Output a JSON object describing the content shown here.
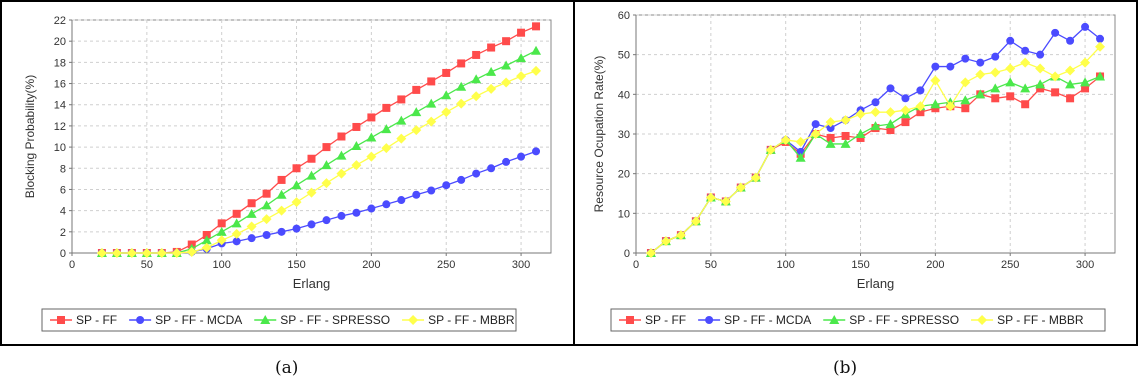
{
  "captions": [
    "(a)",
    "(b)"
  ],
  "chart_data": [
    {
      "type": "line",
      "xlabel": "Erlang",
      "ylabel": "Blocking Probability(%)",
      "xlim": [
        0,
        320
      ],
      "ylim": [
        0,
        22
      ],
      "xticks": [
        0,
        50,
        100,
        150,
        200,
        250,
        300
      ],
      "yticks": [
        0,
        2,
        4,
        6,
        8,
        10,
        12,
        14,
        16,
        18,
        20,
        22
      ],
      "grid": true,
      "legend_position": "bottom",
      "x": [
        20,
        30,
        40,
        50,
        60,
        70,
        80,
        90,
        100,
        110,
        120,
        130,
        140,
        150,
        160,
        170,
        180,
        190,
        200,
        210,
        220,
        230,
        240,
        250,
        260,
        270,
        280,
        290,
        300,
        310
      ],
      "series": [
        {
          "name": "SP - FF",
          "color": "#ff4b4b",
          "marker": "square",
          "values": [
            0,
            0,
            0,
            0,
            0,
            0.1,
            0.8,
            1.7,
            2.8,
            3.7,
            4.7,
            5.6,
            6.9,
            8.0,
            8.9,
            10.0,
            11.0,
            11.9,
            12.8,
            13.7,
            14.5,
            15.4,
            16.2,
            17.0,
            17.9,
            18.7,
            19.4,
            20.0,
            20.8,
            21.4
          ]
        },
        {
          "name": "SP - FF - MCDA",
          "color": "#4b4bff",
          "marker": "circle",
          "values": [
            0,
            0,
            0,
            0,
            0,
            0,
            0.1,
            0.4,
            0.9,
            1.1,
            1.4,
            1.7,
            2.0,
            2.3,
            2.7,
            3.1,
            3.5,
            3.8,
            4.2,
            4.6,
            5.0,
            5.5,
            5.9,
            6.4,
            6.9,
            7.5,
            8.0,
            8.6,
            9.1,
            9.6
          ]
        },
        {
          "name": "SP - FF - SPRESSO",
          "color": "#4be84b",
          "marker": "triangle",
          "values": [
            0,
            0,
            0,
            0,
            0,
            0,
            0.4,
            1.2,
            2.0,
            2.8,
            3.7,
            4.5,
            5.5,
            6.4,
            7.3,
            8.3,
            9.2,
            10.1,
            10.9,
            11.7,
            12.5,
            13.3,
            14.1,
            14.9,
            15.7,
            16.4,
            17.1,
            17.7,
            18.4,
            19.1
          ]
        },
        {
          "name": "SP - FF - MBBR",
          "color": "#ffff4b",
          "marker": "diamond",
          "values": [
            0,
            0,
            0,
            0,
            0,
            0,
            0.1,
            0.5,
            1.2,
            1.8,
            2.5,
            3.2,
            4.0,
            4.8,
            5.7,
            6.6,
            7.5,
            8.3,
            9.1,
            9.9,
            10.8,
            11.6,
            12.4,
            13.3,
            14.1,
            14.8,
            15.5,
            16.1,
            16.7,
            17.2
          ]
        }
      ]
    },
    {
      "type": "line",
      "xlabel": "Erlang",
      "ylabel": "Resource Ocupation Rate(%)",
      "xlim": [
        0,
        320
      ],
      "ylim": [
        0,
        60
      ],
      "xticks": [
        0,
        50,
        100,
        150,
        200,
        250,
        300
      ],
      "yticks": [
        0,
        10,
        20,
        30,
        40,
        50,
        60
      ],
      "grid": true,
      "legend_position": "bottom",
      "x": [
        10,
        20,
        30,
        40,
        50,
        60,
        70,
        80,
        90,
        100,
        110,
        120,
        130,
        140,
        150,
        160,
        170,
        180,
        190,
        200,
        210,
        220,
        230,
        240,
        250,
        260,
        270,
        280,
        290,
        300,
        310
      ],
      "series": [
        {
          "name": "SP - FF",
          "color": "#ff4b4b",
          "marker": "square",
          "values": [
            0,
            3,
            4.5,
            8,
            14,
            13,
            16.5,
            19,
            26,
            28,
            25,
            30,
            29,
            29.5,
            29,
            31.5,
            31,
            33,
            35.5,
            36.5,
            37,
            36.5,
            40,
            39,
            39.5,
            37.5,
            41.5,
            40.5,
            39,
            41.5,
            44.5
          ]
        },
        {
          "name": "SP - FF - MCDA",
          "color": "#4b4bff",
          "marker": "circle",
          "values": [
            0,
            3,
            4.5,
            8,
            14,
            13,
            16.5,
            19,
            26,
            28.5,
            25.5,
            32.5,
            31.5,
            33.5,
            36,
            38,
            41.5,
            39,
            41,
            47,
            47,
            49,
            48,
            49.5,
            53.5,
            51,
            50,
            55.5,
            53.5,
            57,
            54
          ]
        },
        {
          "name": "SP - FF - SPRESSO",
          "color": "#4be84b",
          "marker": "triangle",
          "values": [
            0,
            3,
            4.5,
            8,
            14,
            13,
            16.5,
            19,
            26,
            28.5,
            24,
            30,
            27.5,
            27.5,
            30,
            32,
            32.5,
            35,
            37,
            37.5,
            38,
            38.5,
            40,
            41.5,
            43,
            41.5,
            42.5,
            44.5,
            42.5,
            43,
            44.5
          ]
        },
        {
          "name": "SP - FF - MBBR",
          "color": "#ffff4b",
          "marker": "diamond",
          "values": [
            0,
            3,
            4.5,
            8,
            14,
            13,
            16.5,
            19,
            26,
            28.5,
            28,
            30,
            33,
            33.5,
            35,
            35.5,
            35.5,
            36,
            37,
            43.5,
            37,
            43,
            45,
            45.5,
            46.5,
            48,
            46.5,
            44.5,
            46,
            48,
            52
          ]
        }
      ]
    }
  ]
}
